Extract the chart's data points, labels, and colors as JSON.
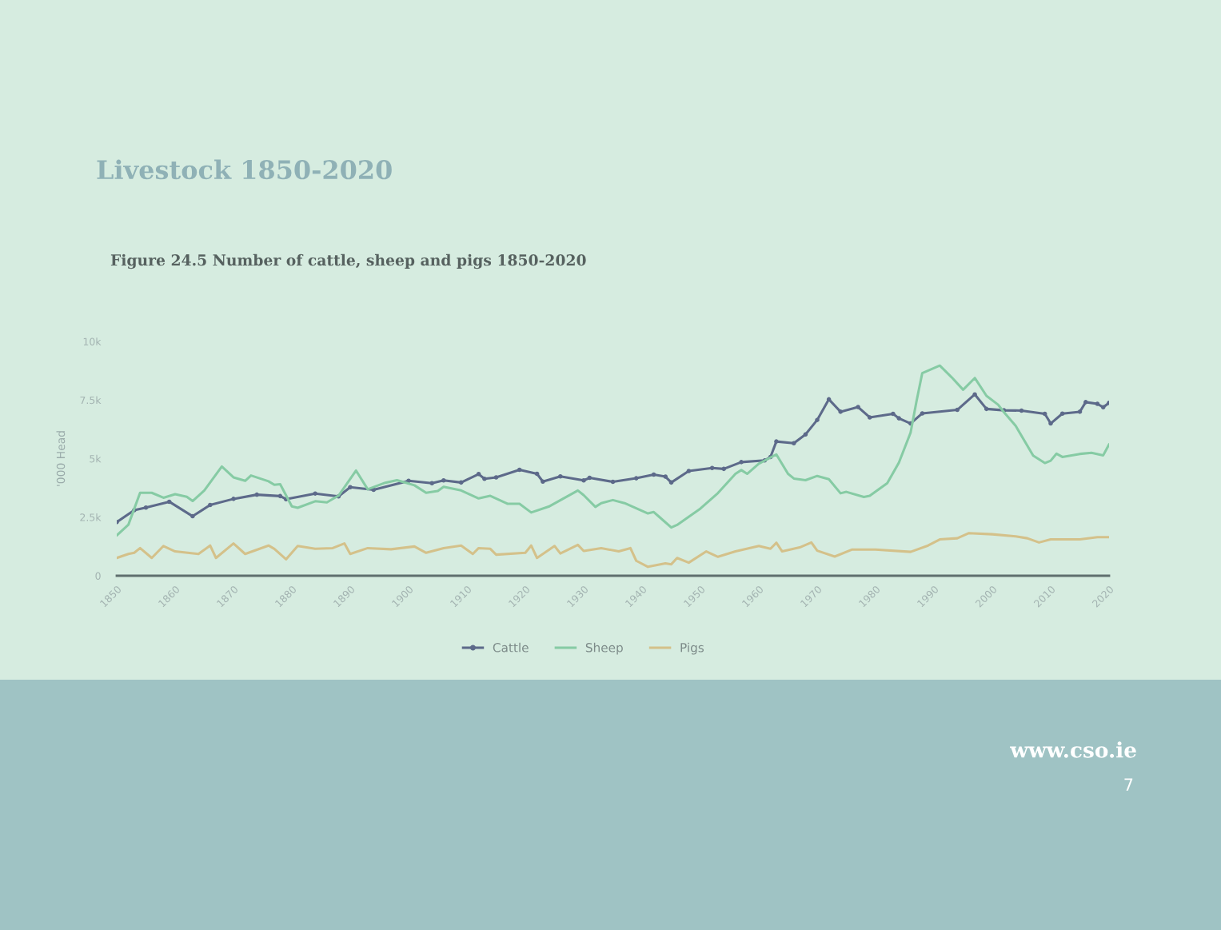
{
  "chart_data": {
    "type": "line",
    "title": "Livestock 1850-2020",
    "subtitle": "Figure 24.5 Number of cattle, sheep and pigs 1850-2020",
    "ylabel": "'000 Head",
    "xlim": [
      1850,
      2020
    ],
    "xticks": [
      1850,
      1860,
      1870,
      1880,
      1890,
      1900,
      1910,
      1920,
      1930,
      1940,
      1950,
      1960,
      1970,
      1980,
      1990,
      2000,
      2010,
      2020
    ],
    "ylim": [
      0,
      10000
    ],
    "yticks": [
      0,
      {
        "value": 2500,
        "label": "2.5k"
      },
      {
        "value": 5000,
        "label": "5k"
      },
      {
        "value": 7500,
        "label": "7.5k"
      },
      {
        "value": 10000,
        "label": "10k"
      }
    ],
    "legend": "bottom",
    "series": [
      {
        "name": "Cattle",
        "color": "#5d6a8a",
        "marker": "circle",
        "x": [
          1850,
          1853,
          1855,
          1859,
          1863,
          1866,
          1870,
          1874,
          1878,
          1879,
          1884,
          1888,
          1890,
          1894,
          1900,
          1904,
          1906,
          1909,
          1912,
          1913,
          1915,
          1919,
          1922,
          1923,
          1926,
          1930,
          1931,
          1935,
          1939,
          1942,
          1944,
          1945,
          1948,
          1952,
          1954,
          1957,
          1961,
          1962,
          1963,
          1966,
          1968,
          1970,
          1972,
          1974,
          1977,
          1979,
          1983,
          1984,
          1986,
          1988,
          1994,
          1997,
          1999,
          2002,
          2005,
          2009,
          2010,
          2012,
          2015,
          2016,
          2018,
          2019,
          2020
        ],
        "values": [
          2290,
          2800,
          2910,
          3160,
          2540,
          3020,
          3280,
          3460,
          3400,
          3270,
          3510,
          3390,
          3780,
          3670,
          4050,
          3950,
          4070,
          3980,
          4340,
          4140,
          4200,
          4520,
          4350,
          4020,
          4240,
          4070,
          4180,
          4010,
          4160,
          4320,
          4230,
          3980,
          4470,
          4600,
          4560,
          4850,
          4920,
          5070,
          5730,
          5660,
          6030,
          6650,
          7530,
          7000,
          7200,
          6760,
          6910,
          6720,
          6500,
          6930,
          7080,
          7740,
          7120,
          7060,
          7050,
          6910,
          6500,
          6920,
          7000,
          7410,
          7340,
          7190,
          7380
        ]
      },
      {
        "name": "Sheep",
        "color": "#86cba4",
        "x": [
          1850,
          1852,
          1854,
          1856,
          1858,
          1860,
          1862,
          1863,
          1865,
          1868,
          1870,
          1872,
          1873,
          1876,
          1877,
          1878,
          1880,
          1881,
          1884,
          1886,
          1888,
          1891,
          1893,
          1896,
          1898,
          1901,
          1903,
          1905,
          1906,
          1909,
          1912,
          1914,
          1917,
          1919,
          1921,
          1924,
          1929,
          1930,
          1932,
          1933,
          1935,
          1937,
          1941,
          1942,
          1943,
          1945,
          1946,
          1950,
          1953,
          1956,
          1957,
          1958,
          1960,
          1963,
          1965,
          1966,
          1968,
          1970,
          1972,
          1974,
          1975,
          1978,
          1979,
          1982,
          1984,
          1986,
          1987,
          1988,
          1991,
          1993,
          1995,
          1997,
          1999,
          2001,
          2002,
          2004,
          2007,
          2009,
          2010,
          2011,
          2012,
          2015,
          2017,
          2019,
          2020
        ],
        "values": [
          1720,
          2180,
          3540,
          3540,
          3330,
          3480,
          3370,
          3190,
          3640,
          4660,
          4200,
          4050,
          4280,
          4030,
          3880,
          3910,
          2960,
          2900,
          3180,
          3130,
          3420,
          4490,
          3690,
          3970,
          4080,
          3860,
          3540,
          3620,
          3800,
          3640,
          3300,
          3410,
          3070,
          3070,
          2700,
          2950,
          3640,
          3440,
          2940,
          3100,
          3230,
          3100,
          2660,
          2720,
          2500,
          2060,
          2170,
          2870,
          3530,
          4350,
          4510,
          4350,
          4780,
          5180,
          4350,
          4150,
          4080,
          4260,
          4120,
          3520,
          3580,
          3360,
          3410,
          3950,
          4830,
          6110,
          7430,
          8650,
          8970,
          8480,
          7940,
          8440,
          7680,
          7300,
          6980,
          6400,
          5130,
          4810,
          4910,
          5210,
          5070,
          5200,
          5250,
          5140,
          5610
        ]
      },
      {
        "name": "Pigs",
        "color": "#d4c18a",
        "x": [
          1850,
          1852,
          1853,
          1854,
          1856,
          1858,
          1860,
          1864,
          1866,
          1867,
          1870,
          1872,
          1876,
          1877,
          1879,
          1881,
          1884,
          1887,
          1889,
          1890,
          1893,
          1897,
          1901,
          1903,
          1906,
          1909,
          1911,
          1912,
          1914,
          1915,
          1920,
          1921,
          1922,
          1925,
          1926,
          1929,
          1930,
          1933,
          1936,
          1938,
          1939,
          1941,
          1944,
          1945,
          1946,
          1948,
          1951,
          1953,
          1956,
          1960,
          1962,
          1963,
          1964,
          1967,
          1969,
          1970,
          1973,
          1976,
          1980,
          1986,
          1989,
          1991,
          1994,
          1996,
          2000,
          2004,
          2006,
          2008,
          2010,
          2015,
          2018,
          2020
        ],
        "values": [
          760,
          930,
          980,
          1180,
          760,
          1270,
          1040,
          930,
          1290,
          760,
          1380,
          930,
          1290,
          1150,
          700,
          1270,
          1150,
          1180,
          1380,
          930,
          1180,
          1130,
          1250,
          980,
          1180,
          1290,
          930,
          1180,
          1150,
          900,
          980,
          1290,
          760,
          1270,
          950,
          1320,
          1060,
          1180,
          1040,
          1180,
          640,
          380,
          530,
          490,
          760,
          560,
          1040,
          810,
          1040,
          1270,
          1150,
          1410,
          1040,
          1210,
          1420,
          1070,
          820,
          1120,
          1120,
          1020,
          1290,
          1550,
          1600,
          1820,
          1770,
          1680,
          1600,
          1420,
          1550,
          1550,
          1650,
          1650
        ]
      }
    ],
    "annotations": [
      "www.cso.ie",
      "7"
    ]
  }
}
